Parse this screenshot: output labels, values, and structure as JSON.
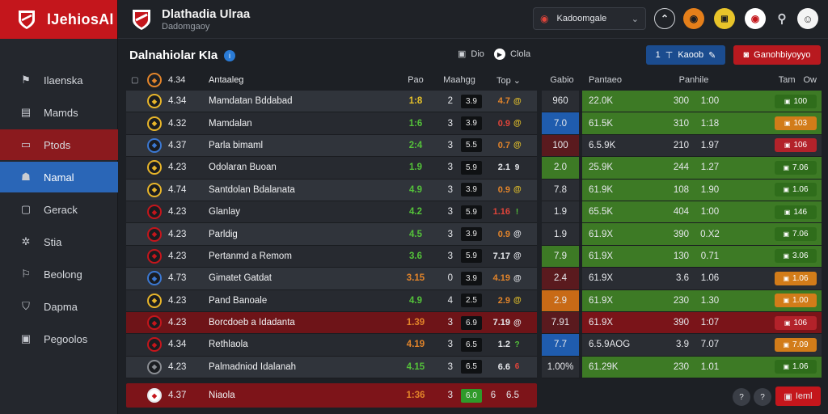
{
  "brand": {
    "name": "lJehiosAl"
  },
  "sidebar": {
    "items": [
      {
        "label": "Ilaenska",
        "icon": "flag-icon",
        "glyph": "⚑"
      },
      {
        "label": "Mamds",
        "icon": "clipboard-icon",
        "glyph": "▤"
      },
      {
        "label": "Ptods",
        "icon": "folder-icon",
        "glyph": "▭"
      },
      {
        "label": "Namal",
        "icon": "user-icon",
        "glyph": "☗"
      },
      {
        "label": "Gerack",
        "icon": "monitor-icon",
        "glyph": "▢"
      },
      {
        "label": "Stia",
        "icon": "gear-icon",
        "glyph": "✲"
      },
      {
        "label": "Beolong",
        "icon": "tag-icon",
        "glyph": "⚐"
      },
      {
        "label": "Dapma",
        "icon": "shield-icon",
        "glyph": "⛉"
      },
      {
        "label": "Pegoolos",
        "icon": "briefcase-icon",
        "glyph": "▣"
      }
    ]
  },
  "header": {
    "title": "Dlathadia Ulraa",
    "subtitle": "Dadomgaoy",
    "select_value": "Kadoomgale"
  },
  "main": {
    "title": "Dalnahiolar KIa",
    "toolbar": {
      "item1": "Dio",
      "item2": "Clola",
      "btn_blue": "Kaoob",
      "btn_blue_num": "1",
      "btn_red": "Ganohbiyoyyo"
    },
    "left_headers": {
      "date": "Antaaleg",
      "pos": "Pao",
      "rating": "Maahgg",
      "top": "Top"
    },
    "right_headers": {
      "val": "Gabio",
      "price": "Pantaeo",
      "stat": "Panhile",
      "extra": "Tam",
      "extra2": "Ow"
    },
    "rows": [
      {
        "num": "4.34",
        "name": "Mamdatan Bddabad",
        "pos": "1:8",
        "pc": "y",
        "rt": "2",
        "box": "3.9",
        "top": "4.7",
        "tc": "o",
        "tdot": "@",
        "dc": "y",
        "crest": "#e7b52a",
        "val": "960",
        "vbg": "dark",
        "price": "22.0K",
        "a": "300",
        "b": "1:00",
        "badge": "100",
        "bcls": "green",
        "bg": "bg0",
        "rbg": "green"
      },
      {
        "num": "4.32",
        "name": "Mamdalan",
        "pos": "1:6",
        "pc": "g",
        "rt": "3",
        "box": "3.9",
        "top": "0.9",
        "tc": "r",
        "tdot": "@",
        "dc": "y",
        "crest": "#e7b52a",
        "val": "7.0",
        "vbg": "blue",
        "price": "61.5K",
        "a": "310",
        "b": "1:18",
        "badge": "103",
        "bcls": "orange",
        "bg": "bg1",
        "rbg": "green"
      },
      {
        "num": "4.37",
        "name": "Parla bimaml",
        "pos": "2:4",
        "pc": "g",
        "rt": "3",
        "box": "5.5",
        "top": "0.7",
        "tc": "o",
        "tdot": "@",
        "dc": "y",
        "crest": "#3b78d2",
        "val": "100",
        "vbg": "maroon",
        "price": "6.5.9K",
        "a": "210",
        "b": "1.97",
        "badge": "106",
        "bcls": "red",
        "bg": "bg0",
        "rbg": "dark"
      },
      {
        "num": "4.23",
        "name": "Odolaran Buoan",
        "pos": "1.9",
        "pc": "g",
        "rt": "3",
        "box": "5.9",
        "top": "2.1",
        "tc": "w",
        "tdot": "9",
        "dc": "w",
        "crest": "#e7b52a",
        "val": "2.0",
        "vbg": "green",
        "price": "25.9K",
        "a": "244",
        "b": "1.27",
        "badge": "7.06",
        "bcls": "green",
        "bg": "bg1",
        "rbg": "green"
      },
      {
        "num": "4.74",
        "name": "Santdolan Bdalanata",
        "pos": "4.9",
        "pc": "g",
        "rt": "3",
        "box": "3.9",
        "top": "0.9",
        "tc": "o",
        "tdot": "@",
        "dc": "y",
        "crest": "#e7b52a",
        "val": "7.8",
        "vbg": "dark",
        "price": "61.9K",
        "a": "108",
        "b": "1.90",
        "badge": "1.06",
        "bcls": "green",
        "bg": "bg0",
        "rbg": "green"
      },
      {
        "num": "4.23",
        "name": "Glanlay",
        "pos": "4.2",
        "pc": "g",
        "rt": "3",
        "box": "5.9",
        "top": "1.16",
        "tc": "r",
        "tdot": "!",
        "dc": "g",
        "crest": "#c4161c",
        "val": "1.9",
        "vbg": "dark",
        "price": "65.5K",
        "a": "404",
        "b": "1:00",
        "badge": "146",
        "bcls": "green",
        "bg": "bg1",
        "rbg": "green"
      },
      {
        "num": "4.23",
        "name": "Parldig",
        "pos": "4.5",
        "pc": "g",
        "rt": "3",
        "box": "3.9",
        "top": "0.9",
        "tc": "o",
        "tdot": "@",
        "dc": "w",
        "crest": "#c4161c",
        "val": "1.9",
        "vbg": "dark",
        "price": "61.9X",
        "a": "390",
        "b": "0.X2",
        "badge": "7.06",
        "bcls": "green",
        "bg": "bg0",
        "rbg": "green"
      },
      {
        "num": "4.23",
        "name": "Pertanmd a Remom",
        "pos": "3.6",
        "pc": "g",
        "rt": "3",
        "box": "5.9",
        "top": "7.17",
        "tc": "w",
        "tdot": "@",
        "dc": "w",
        "crest": "#c4161c",
        "val": "7.9",
        "vbg": "green",
        "price": "61.9X",
        "a": "130",
        "b": "0.71",
        "badge": "3.06",
        "bcls": "green",
        "bg": "bg1",
        "rbg": "green"
      },
      {
        "num": "4.73",
        "name": "Gimatet Gatdat",
        "pos": "3.15",
        "pc": "o",
        "rt": "0",
        "box": "3.9",
        "top": "4.19",
        "tc": "o",
        "tdot": "@",
        "dc": "w",
        "crest": "#3b78d2",
        "val": "2.4",
        "vbg": "maroon",
        "price": "61.9X",
        "a": "3.6",
        "b": "1.06",
        "badge": "1.06",
        "bcls": "orange",
        "bg": "bg0",
        "rbg": "dark"
      },
      {
        "num": "4.23",
        "name": "Pand Banoale",
        "pos": "4.9",
        "pc": "g",
        "rt": "4",
        "box": "2.5",
        "top": "2.9",
        "tc": "o",
        "tdot": "@",
        "dc": "y",
        "crest": "#e7b52a",
        "val": "2.9",
        "vbg": "orange",
        "price": "61.9X",
        "a": "230",
        "b": "1.30",
        "badge": "1.00",
        "bcls": "orange",
        "bg": "bg1",
        "rbg": "green"
      },
      {
        "num": "4.23",
        "name": "Borcdoeb a Idadanta",
        "pos": "1.39",
        "pc": "o",
        "rt": "3",
        "box": "6.9",
        "top": "7.19",
        "tc": "w",
        "tdot": "@",
        "dc": "w",
        "crest": "#c4161c",
        "val": "7.91",
        "vbg": "maroon",
        "price": "61.9X",
        "a": "390",
        "b": "1:07",
        "badge": "106",
        "bcls": "red",
        "bg": "red",
        "rbg": "red"
      },
      {
        "num": "4.34",
        "name": "Rethlaola",
        "pos": "4.19",
        "pc": "o",
        "rt": "3",
        "box": "6.5",
        "top": "1.2",
        "tc": "w",
        "tdot": "?",
        "dc": "g",
        "crest": "#c4161c",
        "val": "7.7",
        "vbg": "blue",
        "price": "6.5.9AOG",
        "a": "3.9",
        "b": "7.07",
        "badge": "7.09",
        "bcls": "orange",
        "bg": "bg1",
        "rbg": "dark"
      },
      {
        "num": "4.23",
        "name": "Palmadniod Idalanah",
        "pos": "4.15",
        "pc": "g",
        "rt": "3",
        "box": "6.5",
        "top": "6.6",
        "tc": "w",
        "tdot": "6",
        "dc": "r",
        "crest": "#8a8d93",
        "val": "1.00%",
        "vbg": "dark",
        "price": "61.29K",
        "a": "230",
        "b": "1.01",
        "badge": "1.06",
        "bcls": "green",
        "bg": "bg0",
        "rbg": "green"
      }
    ],
    "footer": {
      "num": "4.37",
      "name": "Niaola",
      "pos": "1:36",
      "rt": "3",
      "box": "6.0",
      "extra1": "6",
      "extra2": "6.5"
    },
    "pagination": {
      "p1": "?",
      "p2": "?",
      "next": "Ieml"
    }
  }
}
